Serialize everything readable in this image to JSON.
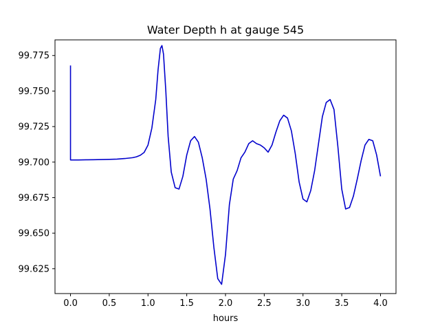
{
  "chart_data": {
    "type": "line",
    "title": "Water Depth h at gauge 545",
    "xlabel": "hours",
    "ylabel": "",
    "xlim": [
      -0.2,
      4.2
    ],
    "ylim": [
      99.6075,
      99.786
    ],
    "xticks": [
      0.0,
      0.5,
      1.0,
      1.5,
      2.0,
      2.5,
      3.0,
      3.5,
      4.0
    ],
    "xtick_labels": [
      "0.0",
      "0.5",
      "1.0",
      "1.5",
      "2.0",
      "2.5",
      "3.0",
      "3.5",
      "4.0"
    ],
    "yticks": [
      99.625,
      99.65,
      99.675,
      99.7,
      99.725,
      99.75,
      99.775
    ],
    "ytick_labels": [
      "99.625",
      "99.650",
      "99.675",
      "99.700",
      "99.725",
      "99.750",
      "99.775"
    ],
    "grid": false,
    "colors": {
      "line": "#0000cc",
      "axes": "#000000",
      "background": "#ffffff"
    },
    "series": [
      {
        "x": [
          0.0,
          0.0,
          0.1,
          0.2,
          0.3,
          0.4,
          0.5,
          0.6,
          0.7,
          0.8,
          0.85,
          0.9,
          0.95,
          1.0,
          1.05,
          1.1,
          1.13,
          1.16,
          1.18,
          1.2,
          1.23,
          1.26,
          1.3,
          1.35,
          1.4,
          1.45,
          1.5,
          1.55,
          1.6,
          1.65,
          1.7,
          1.75,
          1.8,
          1.85,
          1.9,
          1.95,
          2.0,
          2.05,
          2.1,
          2.15,
          2.2,
          2.25,
          2.3,
          2.35,
          2.4,
          2.45,
          2.5,
          2.55,
          2.6,
          2.65,
          2.7,
          2.75,
          2.8,
          2.85,
          2.9,
          2.95,
          3.0,
          3.05,
          3.1,
          3.15,
          3.2,
          3.25,
          3.3,
          3.35,
          3.4,
          3.45,
          3.5,
          3.55,
          3.6,
          3.65,
          3.7,
          3.75,
          3.8,
          3.85,
          3.9,
          3.95,
          4.0
        ],
        "y": [
          99.768,
          99.7015,
          99.7015,
          99.7016,
          99.7017,
          99.7018,
          99.7019,
          99.7021,
          99.7025,
          99.7031,
          99.7037,
          99.7048,
          99.7068,
          99.712,
          99.724,
          99.744,
          99.765,
          99.78,
          99.782,
          99.776,
          99.75,
          99.718,
          99.693,
          99.682,
          99.681,
          99.69,
          99.705,
          99.715,
          99.718,
          99.714,
          99.703,
          99.688,
          99.667,
          99.64,
          99.618,
          99.614,
          99.635,
          99.67,
          99.688,
          99.694,
          99.703,
          99.707,
          99.713,
          99.715,
          99.713,
          99.712,
          99.71,
          99.707,
          99.712,
          99.721,
          99.729,
          99.733,
          99.731,
          99.722,
          99.706,
          99.686,
          99.674,
          99.672,
          99.68,
          99.694,
          99.713,
          99.732,
          99.742,
          99.744,
          99.737,
          99.711,
          99.681,
          99.667,
          99.668,
          99.676,
          99.688,
          99.701,
          99.712,
          99.716,
          99.715,
          99.705,
          99.69
        ]
      }
    ]
  }
}
